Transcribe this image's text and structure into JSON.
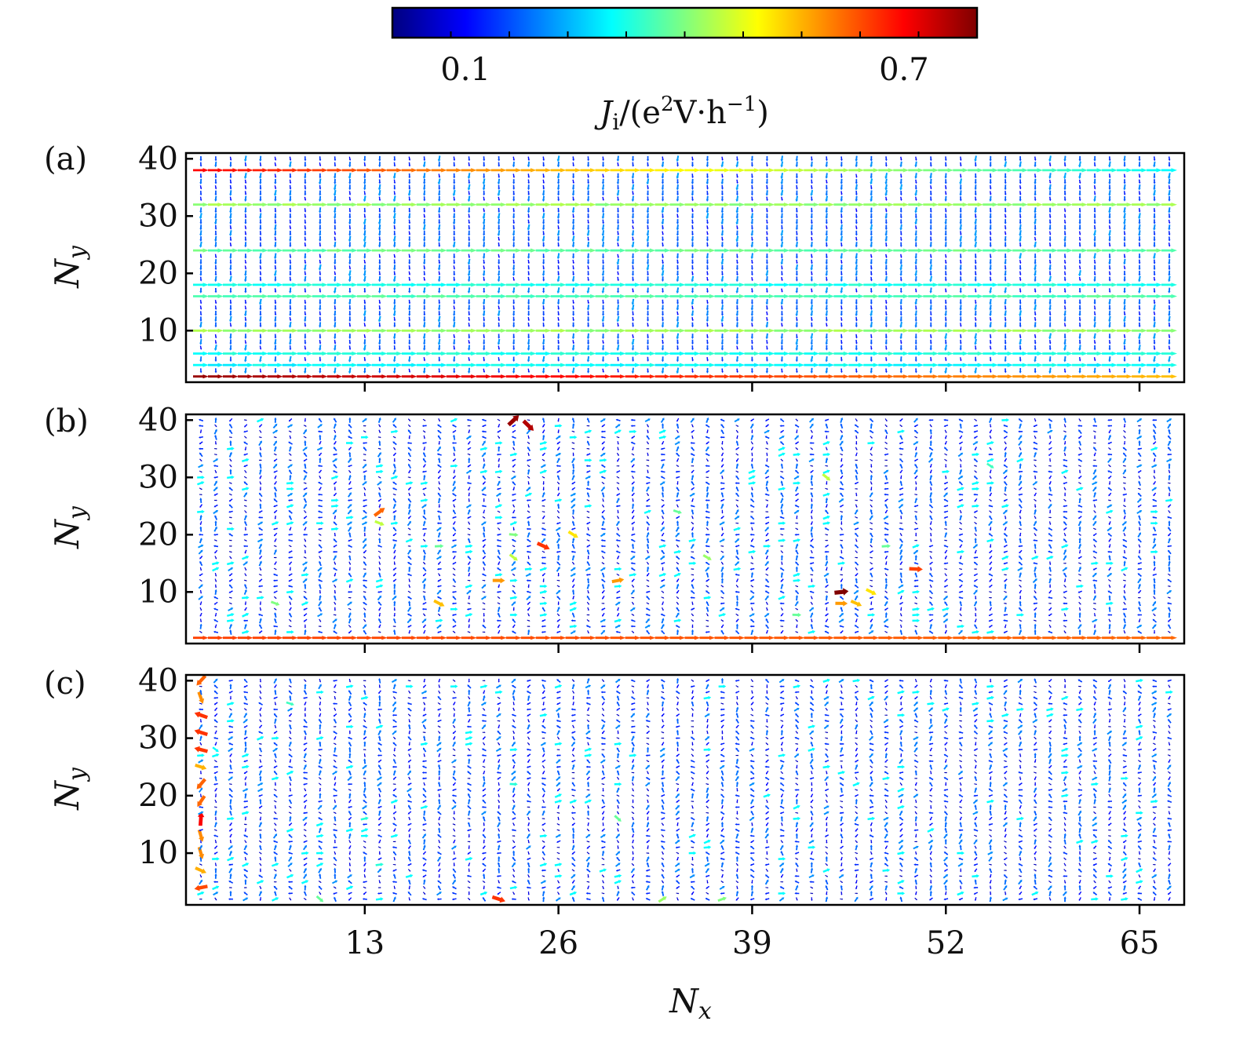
{
  "colorbar": {
    "label_main": "J",
    "label_sub": "i",
    "label_rest": "/(e",
    "label_sup1": "2",
    "label_mid": "V·h",
    "label_sup2": "−1",
    "label_end": ")",
    "tick_labels": [
      "0.1",
      "0.7"
    ],
    "tick_values": [
      0.1,
      0.7
    ],
    "range": [
      0.0,
      0.8
    ],
    "colormap": "jet"
  },
  "chart_data": [
    {
      "type": "quiver",
      "panel_label": "(a)",
      "xlabel": "",
      "ylabel_main": "N",
      "ylabel_sub": "y",
      "xlim": [
        1,
        68
      ],
      "ylim": [
        1,
        41
      ],
      "x_ticks": [
        13,
        26,
        39,
        52,
        65
      ],
      "x_tick_labels": [],
      "y_ticks": [
        10,
        20,
        30,
        40
      ],
      "y_tick_labels": [
        "10",
        "20",
        "30",
        "40"
      ],
      "grid_x": [
        2,
        67,
        1
      ],
      "grid_y": [
        2,
        40,
        1
      ],
      "edge_channels": [
        {
          "y": 2,
          "start": 0.78,
          "end": 0.55
        },
        {
          "y": 38,
          "start": 0.7,
          "end": 0.3
        }
      ],
      "strong_rows": [
        {
          "y": 32,
          "value": 0.42
        },
        {
          "y": 24,
          "value": 0.38
        },
        {
          "y": 18,
          "value": 0.32
        },
        {
          "y": 16,
          "value": 0.36
        },
        {
          "y": 10,
          "value": 0.42
        },
        {
          "y": 6,
          "value": 0.32
        },
        {
          "y": 4,
          "value": 0.3
        }
      ],
      "background_value": 0.22,
      "hotspots": []
    },
    {
      "type": "quiver",
      "panel_label": "(b)",
      "xlabel": "",
      "ylabel_main": "N",
      "ylabel_sub": "y",
      "xlim": [
        1,
        68
      ],
      "ylim": [
        1,
        41
      ],
      "x_ticks": [
        13,
        26,
        39,
        52,
        65
      ],
      "x_tick_labels": [],
      "y_ticks": [
        10,
        20,
        30,
        40
      ],
      "y_tick_labels": [
        "10",
        "20",
        "30",
        "40"
      ],
      "grid_x": [
        2,
        67,
        1
      ],
      "grid_y": [
        2,
        40,
        1
      ],
      "edge_channels": [
        {
          "y": 2,
          "start": 0.65,
          "end": 0.62
        }
      ],
      "strong_rows": [],
      "background_value": 0.12,
      "hotspots": [
        {
          "x": 23,
          "y": 40,
          "value": 0.78
        },
        {
          "x": 24,
          "y": 39,
          "value": 0.76
        },
        {
          "x": 14,
          "y": 24,
          "value": 0.62
        },
        {
          "x": 14,
          "y": 22,
          "value": 0.45
        },
        {
          "x": 25,
          "y": 18,
          "value": 0.66
        },
        {
          "x": 27,
          "y": 20,
          "value": 0.52
        },
        {
          "x": 22,
          "y": 12,
          "value": 0.58
        },
        {
          "x": 30,
          "y": 12,
          "value": 0.58
        },
        {
          "x": 18,
          "y": 8,
          "value": 0.55
        },
        {
          "x": 45,
          "y": 10,
          "value": 0.8
        },
        {
          "x": 45,
          "y": 8,
          "value": 0.58
        },
        {
          "x": 46,
          "y": 8,
          "value": 0.55
        },
        {
          "x": 47,
          "y": 10,
          "value": 0.52
        },
        {
          "x": 50,
          "y": 14,
          "value": 0.65
        },
        {
          "x": 44,
          "y": 30,
          "value": 0.45
        },
        {
          "x": 55,
          "y": 32,
          "value": 0.35
        },
        {
          "x": 34,
          "y": 24,
          "value": 0.38
        },
        {
          "x": 36,
          "y": 16,
          "value": 0.42
        },
        {
          "x": 48,
          "y": 18,
          "value": 0.38
        },
        {
          "x": 23,
          "y": 16,
          "value": 0.45
        },
        {
          "x": 23,
          "y": 20,
          "value": 0.4
        },
        {
          "x": 18,
          "y": 18,
          "value": 0.38
        },
        {
          "x": 7,
          "y": 8,
          "value": 0.4
        },
        {
          "x": 42,
          "y": 6,
          "value": 0.38
        }
      ]
    },
    {
      "type": "quiver",
      "panel_label": "(c)",
      "xlabel_main": "N",
      "xlabel_sub": "x",
      "ylabel_main": "N",
      "ylabel_sub": "y",
      "xlim": [
        1,
        68
      ],
      "ylim": [
        1,
        41
      ],
      "x_ticks": [
        13,
        26,
        39,
        52,
        65
      ],
      "x_tick_labels": [
        "13",
        "26",
        "39",
        "52",
        "65"
      ],
      "y_ticks": [
        10,
        20,
        30,
        40
      ],
      "y_tick_labels": [
        "10",
        "20",
        "30",
        "40"
      ],
      "grid_x": [
        2,
        67,
        1
      ],
      "grid_y": [
        2,
        40,
        1
      ],
      "edge_channels": [],
      "strong_rows": [],
      "background_value": 0.12,
      "hotspots": [
        {
          "x": 1,
          "y": 40,
          "value": 0.8
        },
        {
          "x": 22,
          "y": 2,
          "value": 0.66
        },
        {
          "x": 8,
          "y": 36,
          "value": 0.35
        },
        {
          "x": 3,
          "y": 28,
          "value": 0.3
        },
        {
          "x": 30,
          "y": 16,
          "value": 0.38
        },
        {
          "x": 23,
          "y": 22,
          "value": 0.33
        },
        {
          "x": 13,
          "y": 16,
          "value": 0.33
        },
        {
          "x": 14,
          "y": 8,
          "value": 0.33
        },
        {
          "x": 33,
          "y": 2,
          "value": 0.42
        },
        {
          "x": 37,
          "y": 2,
          "value": 0.4
        },
        {
          "x": 10,
          "y": 2,
          "value": 0.38
        }
      ],
      "left_edge_colored": true
    }
  ]
}
